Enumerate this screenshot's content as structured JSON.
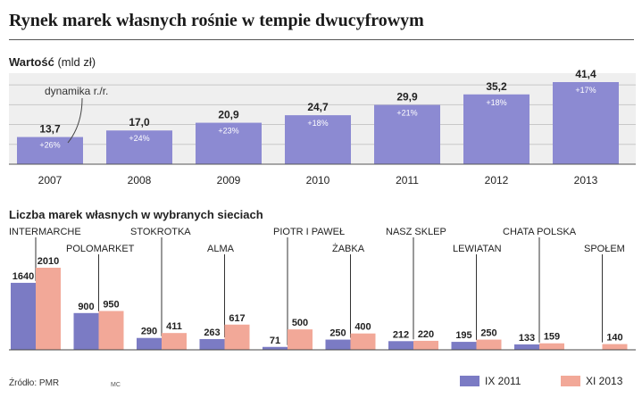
{
  "title": "Rynek marek własnych rośnie w tempie dwucyfrowym",
  "chart_data": [
    {
      "type": "bar",
      "title": "Wartość",
      "unit": "(mld zł)",
      "annotation": "dynamika r./r.",
      "categories": [
        "2007",
        "2008",
        "2009",
        "2010",
        "2011",
        "2012",
        "2013"
      ],
      "value_labels": [
        "13,7",
        "17,0",
        "20,9",
        "24,7",
        "29,9",
        "35,2",
        "41,4"
      ],
      "values": [
        13.7,
        17.0,
        20.9,
        24.7,
        29.9,
        35.2,
        41.4
      ],
      "growth": [
        "+26%",
        "+24%",
        "+23%",
        "+18%",
        "+21%",
        "+18%",
        "+17%"
      ],
      "ylim": [
        0,
        45
      ],
      "grid": true,
      "color": "#8c8ad2"
    },
    {
      "type": "bar",
      "title": "Liczba marek własnych w wybranych sieciach",
      "categories": [
        "INTERMARCHE",
        "POLOMARKET",
        "STOKROTKA",
        "ALMA",
        "PIOTR I PAWEŁ",
        "ŻABKA",
        "NASZ SKLEP",
        "LEWIATAN",
        "CHATA POLSKA",
        "SPOŁEM"
      ],
      "series": [
        {
          "name": "IX 2011",
          "color": "#7b7bc4",
          "values": [
            1640,
            900,
            290,
            263,
            71,
            250,
            212,
            195,
            133,
            null
          ]
        },
        {
          "name": "XI 2013",
          "color": "#f2a898",
          "values": [
            2010,
            950,
            411,
            617,
            500,
            400,
            220,
            250,
            159,
            140
          ]
        }
      ],
      "ylim": [
        0,
        2150
      ],
      "legend": "bottom-right"
    }
  ],
  "source": "Źródło: PMR",
  "initials": "MC"
}
